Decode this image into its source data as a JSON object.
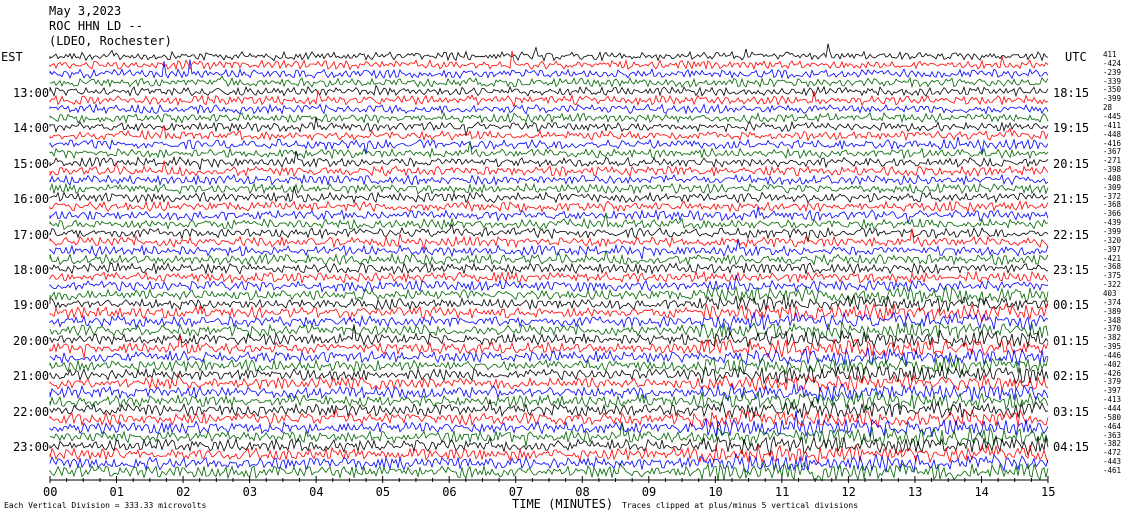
{
  "header": {
    "date": "May 3,2023",
    "station": "ROC HHN LD --",
    "network": "(LDEO, Rochester)"
  },
  "left_zone": "EST",
  "right_zone": "UTC",
  "footer": {
    "scale_note": "Each Vertical Division =  333.33 microvolts",
    "clip_note": "Traces clipped at plus/minus 5 vertical divisions"
  },
  "chart_data": {
    "type": "line",
    "title": "",
    "xlabel": "TIME (MINUTES)",
    "ylabel": "",
    "xlim": [
      0,
      15
    ],
    "x_ticks": [
      "00",
      "01",
      "02",
      "03",
      "04",
      "05",
      "06",
      "07",
      "08",
      "09",
      "10",
      "11",
      "12",
      "13",
      "14",
      "15"
    ],
    "left_time_labels": [
      "13:00",
      "14:00",
      "15:00",
      "16:00",
      "17:00",
      "18:00",
      "19:00",
      "20:00",
      "21:00",
      "22:00",
      "23:00"
    ],
    "right_time_labels": [
      "18:15",
      "19:15",
      "20:15",
      "21:15",
      "22:15",
      "23:15",
      "00:15",
      "01:15",
      "02:15",
      "03:15",
      "04:15"
    ],
    "trace_color_cycle": [
      "#000000",
      "#ff0000",
      "#0000ff",
      "#006400"
    ],
    "trace_count": 48,
    "trace_means": [
      "411",
      "-424",
      "-239",
      "-339",
      "-350",
      "-399",
      "28",
      "-445",
      "-411",
      "-448",
      "-416",
      "-367",
      "-271",
      "-398",
      "-408",
      "-309",
      "-372",
      "-368",
      "-366",
      "-439",
      "-399",
      "-320",
      "-397",
      "-421",
      "-368",
      "-375",
      "-322",
      "403",
      "-374",
      "-389",
      "-348",
      "-370",
      "-382",
      "-395",
      "-446",
      "-402",
      "-426",
      "-379",
      "-397",
      "-413",
      "-444",
      "-580",
      "-464",
      "-363",
      "-382",
      "-472",
      "-443",
      "-461"
    ],
    "scale": "333.33 microvolts per vertical division",
    "clip": "plus/minus 5 vertical divisions"
  }
}
